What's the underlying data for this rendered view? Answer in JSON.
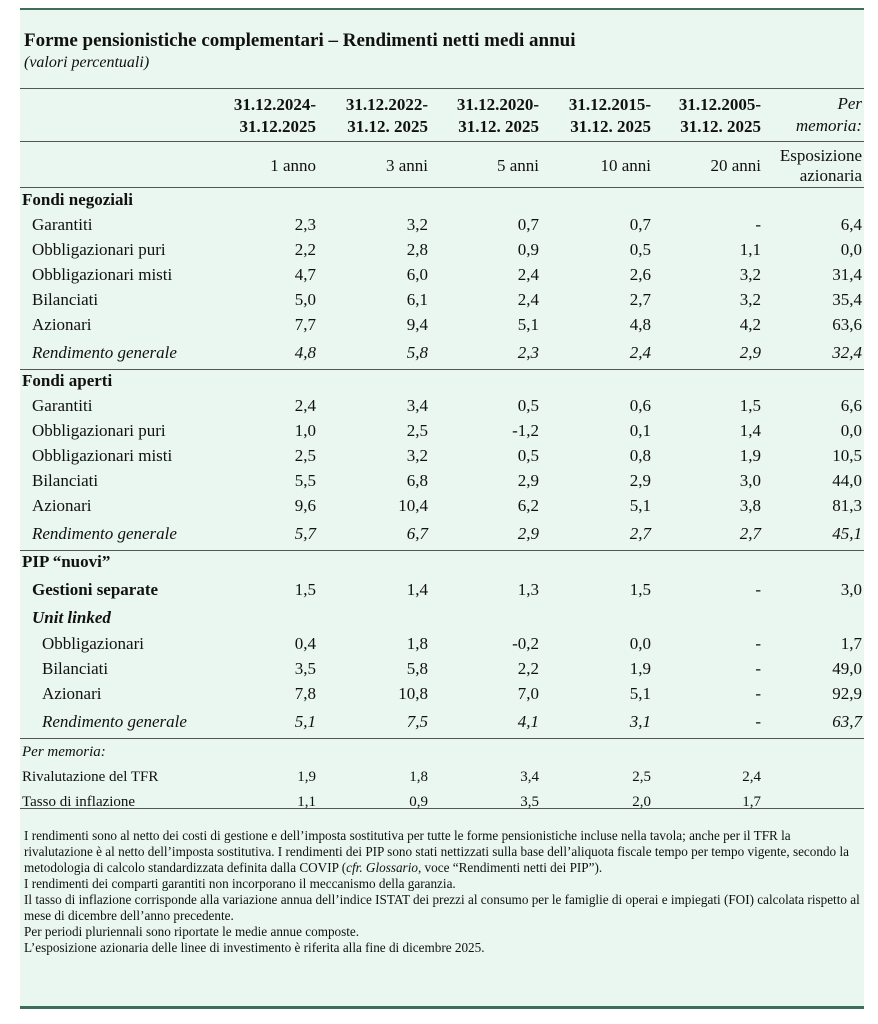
{
  "title": "Forme pensionistiche complementari – Rendimenti netti medi annui",
  "subtitle": "(valori percentuali)",
  "columns": [
    {
      "period_top": "31.12.2024-",
      "period_bottom": "31.12.2025",
      "label": "1 anno"
    },
    {
      "period_top": "31.12.2022-",
      "period_bottom": "31.12. 2025",
      "label": "3 anni"
    },
    {
      "period_top": "31.12.2020-",
      "period_bottom": "31.12. 2025",
      "label": "5 anni"
    },
    {
      "period_top": "31.12.2015-",
      "period_bottom": "31.12. 2025",
      "label": "10 anni"
    },
    {
      "period_top": "31.12.2005-",
      "period_bottom": "31.12. 2025",
      "label": "20 anni"
    },
    {
      "period_top": "Per",
      "period_bottom": "memoria:",
      "label_top": "Esposizione",
      "label_bottom": "azionaria"
    }
  ],
  "sections": [
    {
      "heading": "Fondi negoziali",
      "rows": [
        {
          "label": "Garantiti",
          "values": [
            "2,3",
            "3,2",
            "0,7",
            "0,7",
            "-",
            "6,4"
          ]
        },
        {
          "label": "Obbligazionari puri",
          "values": [
            "2,2",
            "2,8",
            "0,9",
            "0,5",
            "1,1",
            "0,0"
          ]
        },
        {
          "label": "Obbligazionari misti",
          "values": [
            "4,7",
            "6,0",
            "2,4",
            "2,6",
            "3,2",
            "31,4"
          ]
        },
        {
          "label": "Bilanciati",
          "values": [
            "5,0",
            "6,1",
            "2,4",
            "2,7",
            "3,2",
            "35,4"
          ]
        },
        {
          "label": "Azionari",
          "values": [
            "7,7",
            "9,4",
            "5,1",
            "4,8",
            "4,2",
            "63,6"
          ]
        },
        {
          "label": "Rendimento generale",
          "values": [
            "4,8",
            "5,8",
            "2,3",
            "2,4",
            "2,9",
            "32,4"
          ]
        }
      ]
    },
    {
      "heading": "Fondi aperti",
      "rows": [
        {
          "label": "Garantiti",
          "values": [
            "2,4",
            "3,4",
            "0,5",
            "0,6",
            "1,5",
            "6,6"
          ]
        },
        {
          "label": "Obbligazionari puri",
          "values": [
            "1,0",
            "2,5",
            "-1,2",
            "0,1",
            "1,4",
            "0,0"
          ]
        },
        {
          "label": "Obbligazionari misti",
          "values": [
            "2,5",
            "3,2",
            "0,5",
            "0,8",
            "1,9",
            "10,5"
          ]
        },
        {
          "label": "Bilanciati",
          "values": [
            "5,5",
            "6,8",
            "2,9",
            "2,9",
            "3,0",
            "44,0"
          ]
        },
        {
          "label": "Azionari",
          "values": [
            "9,6",
            "10,4",
            "6,2",
            "5,1",
            "3,8",
            "81,3"
          ]
        },
        {
          "label": "Rendimento generale",
          "values": [
            "5,7",
            "6,7",
            "2,9",
            "2,7",
            "2,7",
            "45,1"
          ]
        }
      ]
    },
    {
      "heading": "PIP “nuovi”",
      "gestioni": {
        "label": "Gestioni separate",
        "values": [
          "1,5",
          "1,4",
          "1,3",
          "1,5",
          "-",
          "3,0"
        ]
      },
      "unit_linked_heading": "Unit linked",
      "rows": [
        {
          "label": "Obbligazionari",
          "values": [
            "0,4",
            "1,8",
            "-0,2",
            "0,0",
            "-",
            "1,7"
          ]
        },
        {
          "label": "Bilanciati",
          "values": [
            "3,5",
            "5,8",
            "2,2",
            "1,9",
            "-",
            "49,0"
          ]
        },
        {
          "label": "Azionari",
          "values": [
            "7,8",
            "10,8",
            "7,0",
            "5,1",
            "-",
            "92,9"
          ]
        },
        {
          "label": "Rendimento generale",
          "values": [
            "5,1",
            "7,5",
            "4,1",
            "3,1",
            "-",
            "63,7"
          ]
        }
      ]
    }
  ],
  "memo": {
    "heading": "Per memoria:",
    "rows": [
      {
        "label": "Rivalutazione del TFR",
        "values": [
          "1,9",
          "1,8",
          "3,4",
          "2,5",
          "2,4"
        ]
      },
      {
        "label": "Tasso di inflazione",
        "values": [
          "1,1",
          "0,9",
          "3,5",
          "2,0",
          "1,7"
        ]
      }
    ]
  },
  "notes": {
    "p1_a": "I rendimenti sono al netto dei costi di gestione e dell’imposta sostitutiva per tutte le forme pensionistiche incluse nella tavola; anche per il TFR la rivalutazione è al netto dell’imposta sostitutiva. I rendimenti dei PIP sono stati nettizzati sulla base dell’aliquota fiscale tempo per tempo vigente, secondo la metodologia di calcolo standardizzata definita dalla COVIP (",
    "p1_ital": "cfr. Glossario",
    "p1_b": ", voce “Rendimenti netti dei PIP”).",
    "p2": "I rendimenti dei comparti garantiti non incorporano il meccanismo della garanzia.",
    "p3": "Il tasso di inflazione corrisponde alla variazione annua dell’indice ISTAT dei prezzi al consumo per le famiglie di operai e impiegati (FOI) calcolata rispetto al mese di dicembre dell’anno precedente.",
    "p4": "Per periodi pluriennali sono riportate le medie annue composte.",
    "p5": "L’esposizione azionaria delle linee di investimento è riferita alla fine di dicembre 2025."
  }
}
